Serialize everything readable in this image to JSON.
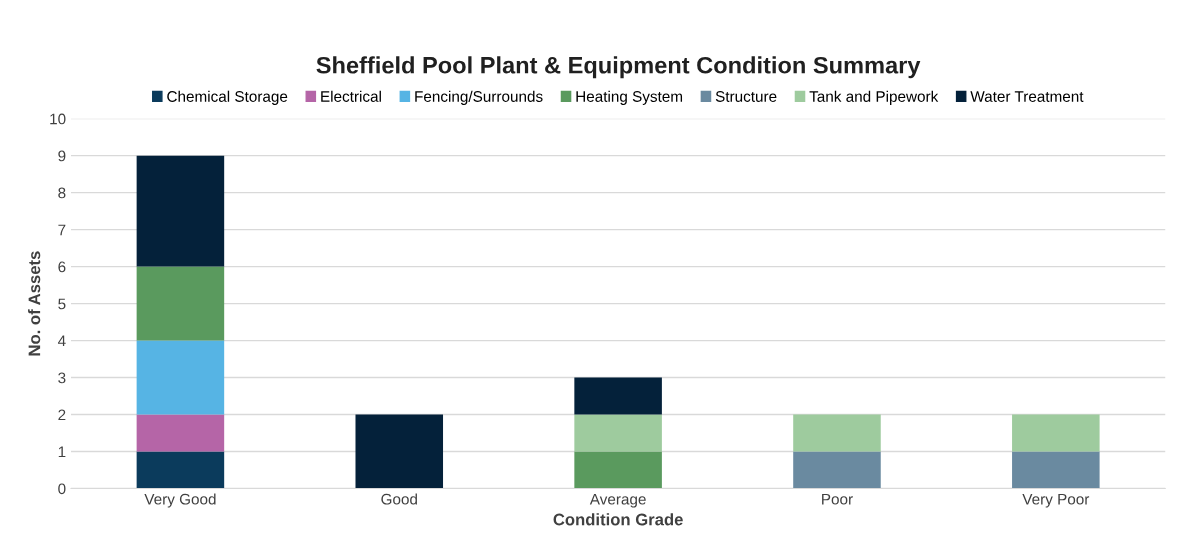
{
  "chart_data": {
    "type": "bar",
    "stacked": true,
    "title": "Sheffield Pool Plant & Equipment Condition Summary",
    "xlabel": "Condition Grade",
    "ylabel": "No. of Assets",
    "categories": [
      "Very Good",
      "Good",
      "Average",
      "Poor",
      "Very Poor"
    ],
    "series": [
      {
        "name": "Chemical Storage",
        "color": "#0b3b5c",
        "values": [
          1,
          0,
          0,
          0,
          0
        ]
      },
      {
        "name": "Electrical",
        "color": "#b565a7",
        "values": [
          1,
          0,
          0,
          0,
          0
        ]
      },
      {
        "name": "Fencing/Surrounds",
        "color": "#56b4e4",
        "values": [
          2,
          0,
          0,
          0,
          0
        ]
      },
      {
        "name": "Heating System",
        "color": "#5a9a5e",
        "values": [
          2,
          0,
          1,
          0,
          0
        ]
      },
      {
        "name": "Structure",
        "color": "#6a8aa0",
        "values": [
          0,
          0,
          0,
          1,
          1
        ]
      },
      {
        "name": "Tank and Pipework",
        "color": "#9ecb9e",
        "values": [
          0,
          0,
          1,
          1,
          1
        ]
      },
      {
        "name": "Water Treatment",
        "color": "#04213a",
        "values": [
          3,
          2,
          1,
          0,
          0
        ]
      }
    ],
    "ylim": [
      0,
      10
    ],
    "yticks": [
      0,
      1,
      2,
      3,
      4,
      5,
      6,
      7,
      8,
      9,
      10
    ],
    "grid": "y",
    "legend": "top"
  }
}
